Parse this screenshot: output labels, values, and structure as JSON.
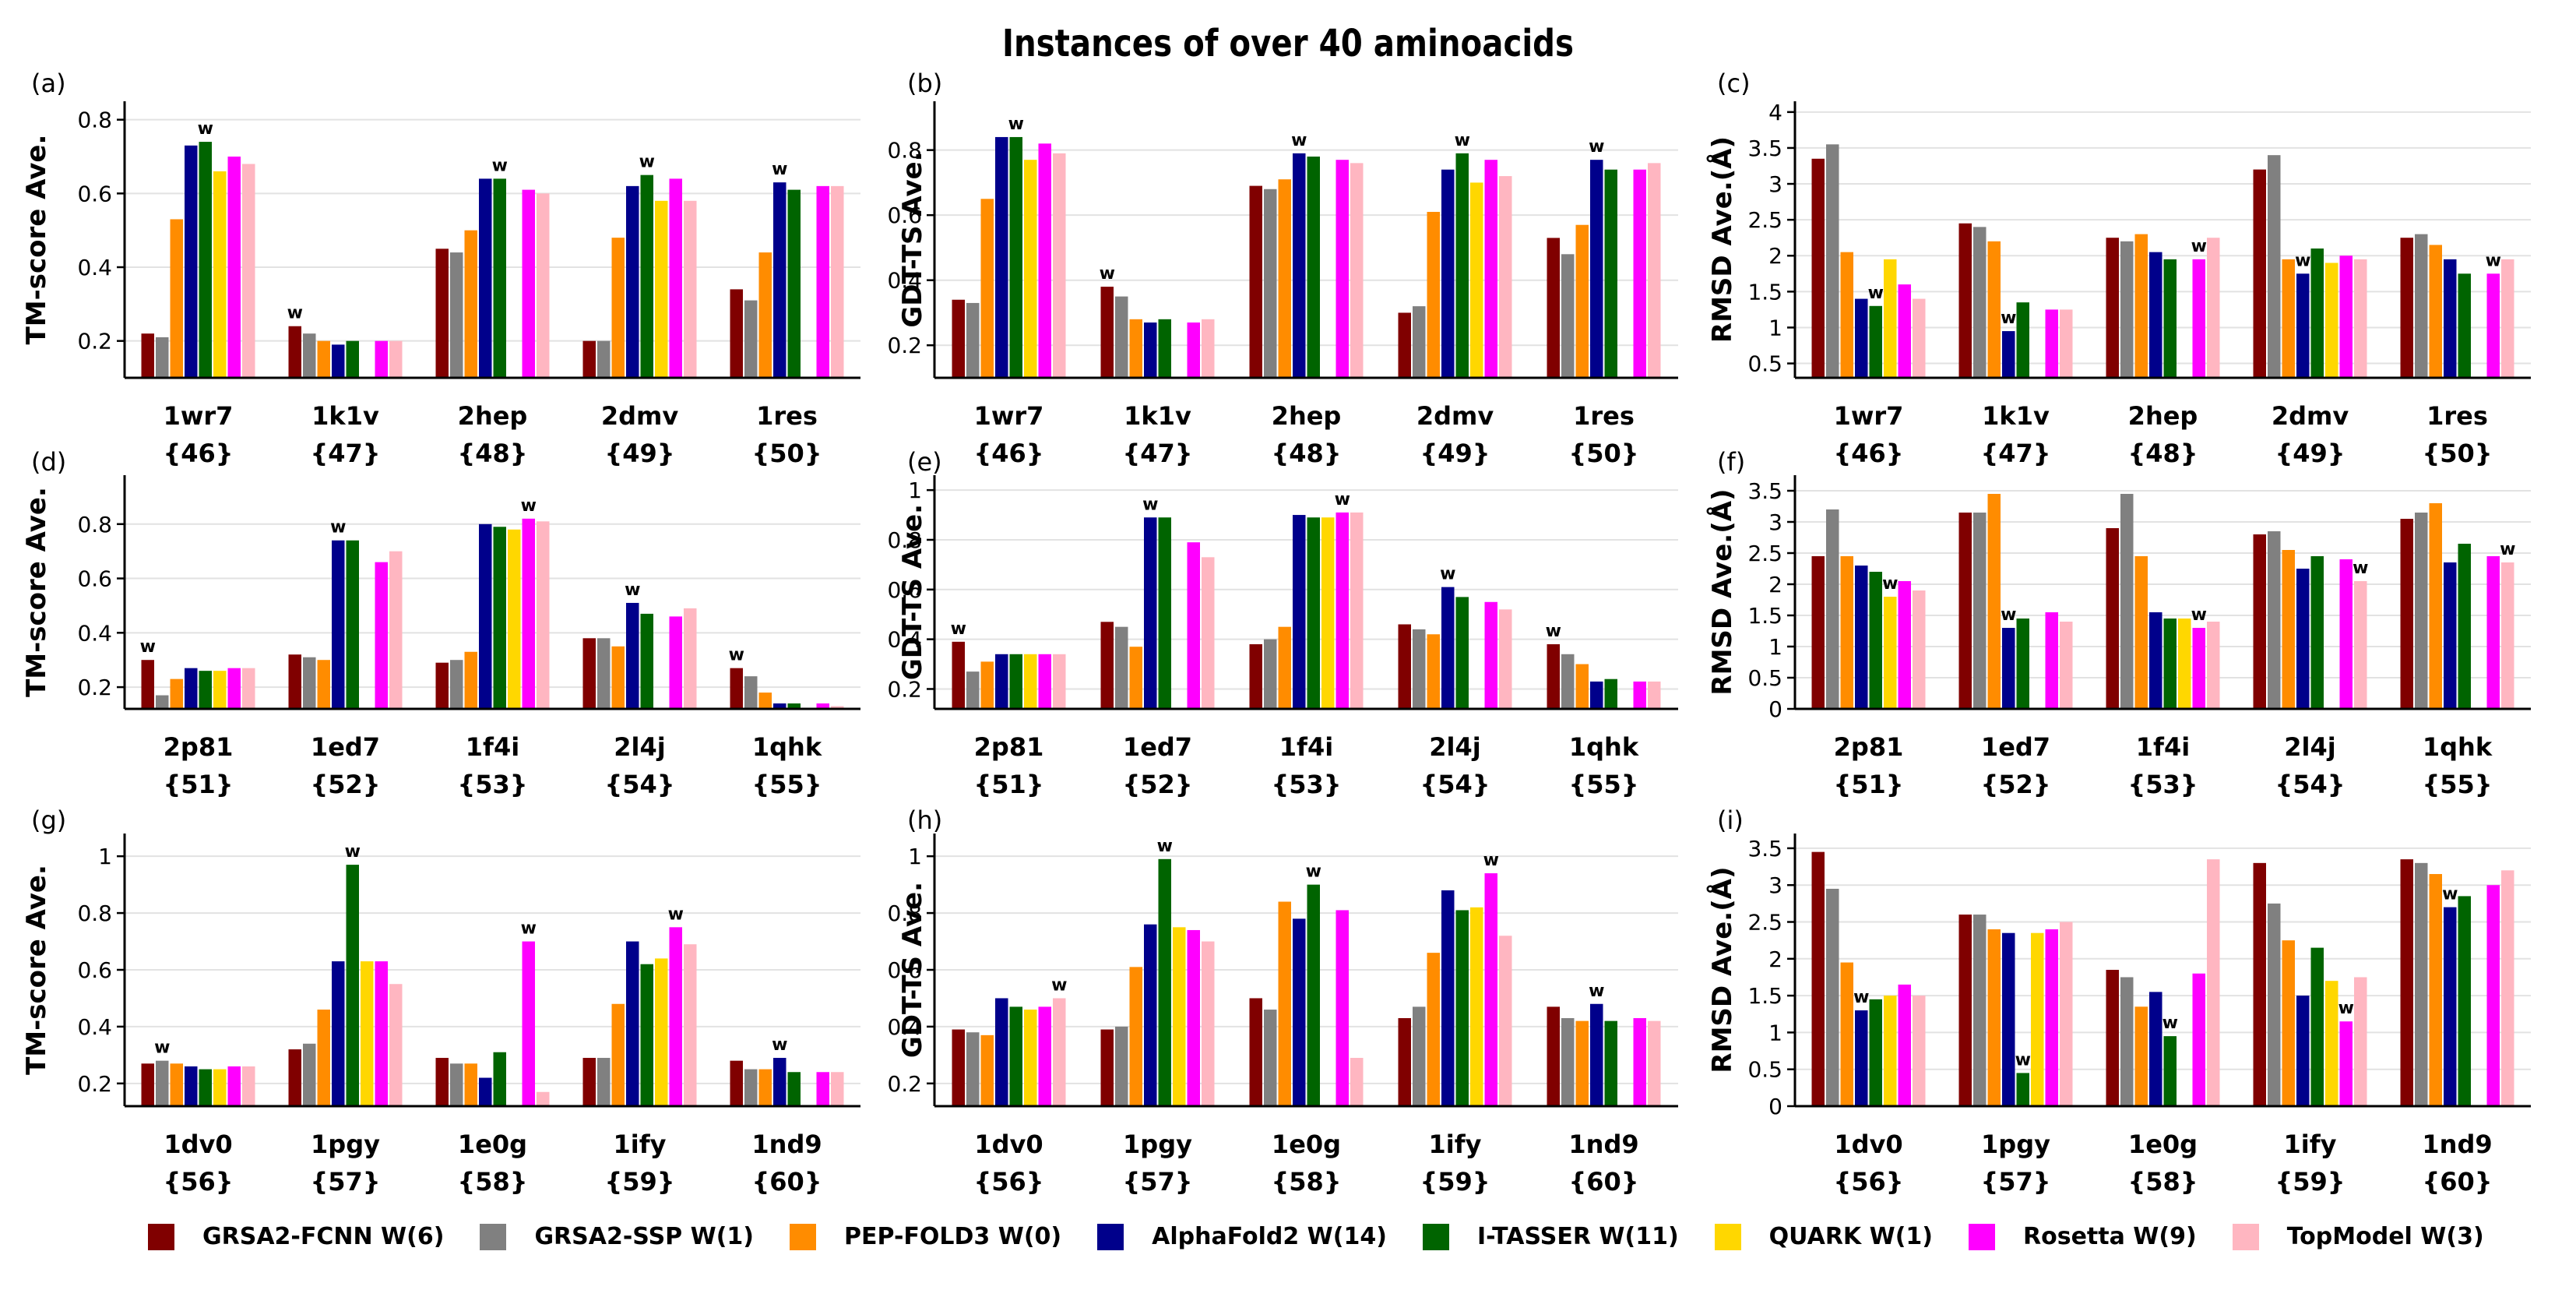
{
  "title": "Instances of over 40 aminoacids",
  "series": [
    {
      "name": "GRSA2-FCNN W(6)",
      "color": "#800000"
    },
    {
      "name": "GRSA2-SSP W(1)",
      "color": "#808080"
    },
    {
      "name": "PEP-FOLD3 W(0)",
      "color": "#ff8c00"
    },
    {
      "name": "AlphaFold2 W(14)",
      "color": "#00008b"
    },
    {
      "name": "I-TASSER W(11)",
      "color": "#006400"
    },
    {
      "name": "QUARK W(1)",
      "color": "#ffd700"
    },
    {
      "name": "Rosetta W(9)",
      "color": "#ff00ff"
    },
    {
      "name": "TopModel W(3)",
      "color": "#ffb6c1"
    }
  ],
  "winner_mark": "w",
  "chart_data": [
    {
      "panel": "(a)",
      "type": "bar",
      "ylabel": "TM-score Ave.",
      "ylim": [
        0.1,
        0.85
      ],
      "yticks": [
        0.2,
        0.4,
        0.6,
        0.8
      ],
      "ytick_labels": [
        "0.2",
        "0.4",
        "0.6",
        "0.8"
      ],
      "categories": [
        "1wr7",
        "1k1v",
        "2hep",
        "2dmv",
        "1res"
      ],
      "category_ids": [
        "{46}",
        "{47}",
        "{48}",
        "{49}",
        "{50}"
      ],
      "values": [
        [
          0.22,
          0.21,
          0.53,
          0.73,
          0.74,
          0.66,
          0.7,
          0.68
        ],
        [
          0.24,
          0.22,
          0.2,
          0.19,
          0.2,
          0.1,
          0.2,
          0.2
        ],
        [
          0.45,
          0.44,
          0.5,
          0.64,
          0.64,
          0.1,
          0.61,
          0.6
        ],
        [
          0.2,
          0.2,
          0.48,
          0.62,
          0.65,
          0.58,
          0.64,
          0.58
        ],
        [
          0.34,
          0.31,
          0.44,
          0.63,
          0.61,
          0.1,
          0.62,
          0.62
        ]
      ],
      "winners": [
        4,
        0,
        4,
        4,
        3
      ]
    },
    {
      "panel": "(b)",
      "type": "bar",
      "ylabel": "GDT-TS Ave.",
      "ylim": [
        0.1,
        0.95
      ],
      "yticks": [
        0.2,
        0.4,
        0.6,
        0.8
      ],
      "ytick_labels": [
        "0.2",
        "0.4",
        "0.6",
        "0.8"
      ],
      "categories": [
        "1wr7",
        "1k1v",
        "2hep",
        "2dmv",
        "1res"
      ],
      "category_ids": [
        "{46}",
        "{47}",
        "{48}",
        "{49}",
        "{50}"
      ],
      "values": [
        [
          0.34,
          0.33,
          0.65,
          0.84,
          0.84,
          0.77,
          0.82,
          0.79
        ],
        [
          0.38,
          0.35,
          0.28,
          0.27,
          0.28,
          0.1,
          0.27,
          0.28
        ],
        [
          0.69,
          0.68,
          0.71,
          0.79,
          0.78,
          0.1,
          0.77,
          0.76
        ],
        [
          0.3,
          0.32,
          0.61,
          0.74,
          0.79,
          0.7,
          0.77,
          0.72
        ],
        [
          0.53,
          0.48,
          0.57,
          0.77,
          0.74,
          0.1,
          0.74,
          0.76
        ]
      ],
      "winners": [
        4,
        0,
        3,
        4,
        3
      ]
    },
    {
      "panel": "(c)",
      "type": "bar",
      "ylabel": "RMSD Ave.(Å)",
      "ylim": [
        0.3,
        4.15
      ],
      "yticks": [
        0.5,
        1,
        1.5,
        2,
        2.5,
        3,
        3.5,
        4
      ],
      "ytick_labels": [
        "0.5",
        "1",
        "1.5",
        "2",
        "2.5",
        "3",
        "3.5",
        "4"
      ],
      "categories": [
        "1wr7",
        "1k1v",
        "2hep",
        "2dmv",
        "1res"
      ],
      "category_ids": [
        "{46}",
        "{47}",
        "{48}",
        "{49}",
        "{50}"
      ],
      "values": [
        [
          3.35,
          3.55,
          2.05,
          1.4,
          1.3,
          1.95,
          1.6,
          1.4
        ],
        [
          2.45,
          2.4,
          2.2,
          0.95,
          1.35,
          0.3,
          1.25,
          1.25
        ],
        [
          2.25,
          2.2,
          2.3,
          2.05,
          1.95,
          0.3,
          1.95,
          2.25
        ],
        [
          3.2,
          3.4,
          1.95,
          1.75,
          2.1,
          1.9,
          2.0,
          1.95
        ],
        [
          2.25,
          2.3,
          2.15,
          1.95,
          1.75,
          0.3,
          1.75,
          1.95
        ]
      ],
      "winners": [
        4,
        3,
        6,
        3,
        6
      ]
    },
    {
      "panel": "(d)",
      "type": "bar",
      "ylabel": "TM-score Ave.",
      "ylim": [
        0.12,
        0.98
      ],
      "yticks": [
        0.2,
        0.4,
        0.6,
        0.8
      ],
      "ytick_labels": [
        "0.2",
        "0.4",
        "0.6",
        "0.8"
      ],
      "categories": [
        "2p81",
        "1ed7",
        "1f4i",
        "2l4j",
        "1qhk"
      ],
      "category_ids": [
        "{51}",
        "{52}",
        "{53}",
        "{54}",
        "{55}"
      ],
      "values": [
        [
          0.3,
          0.17,
          0.23,
          0.27,
          0.26,
          0.26,
          0.27,
          0.27
        ],
        [
          0.32,
          0.31,
          0.3,
          0.74,
          0.74,
          0.12,
          0.66,
          0.7
        ],
        [
          0.29,
          0.3,
          0.33,
          0.8,
          0.79,
          0.78,
          0.82,
          0.81
        ],
        [
          0.38,
          0.38,
          0.35,
          0.51,
          0.47,
          0.12,
          0.46,
          0.49
        ],
        [
          0.27,
          0.24,
          0.18,
          0.14,
          0.14,
          0.12,
          0.14,
          0.13
        ]
      ],
      "winners": [
        0,
        3,
        6,
        3,
        0
      ]
    },
    {
      "panel": "(e)",
      "type": "bar",
      "ylabel": "GDT-TS Ave.",
      "ylim": [
        0.12,
        1.06
      ],
      "yticks": [
        0.2,
        0.4,
        0.6,
        0.8,
        1
      ],
      "ytick_labels": [
        "0.2",
        "0.4",
        "0.6",
        "0.8",
        "1"
      ],
      "categories": [
        "2p81",
        "1ed7",
        "1f4i",
        "2l4j",
        "1qhk"
      ],
      "category_ids": [
        "{51}",
        "{52}",
        "{53}",
        "{54}",
        "{55}"
      ],
      "values": [
        [
          0.39,
          0.27,
          0.31,
          0.34,
          0.34,
          0.34,
          0.34,
          0.34
        ],
        [
          0.47,
          0.45,
          0.37,
          0.89,
          0.89,
          0.12,
          0.79,
          0.73
        ],
        [
          0.38,
          0.4,
          0.45,
          0.9,
          0.89,
          0.89,
          0.91,
          0.91
        ],
        [
          0.46,
          0.44,
          0.42,
          0.61,
          0.57,
          0.12,
          0.55,
          0.52
        ],
        [
          0.38,
          0.34,
          0.3,
          0.23,
          0.24,
          0.12,
          0.23,
          0.23
        ]
      ],
      "winners": [
        0,
        3,
        6,
        3,
        0
      ]
    },
    {
      "panel": "(f)",
      "type": "bar",
      "ylabel": "RMSD Ave.(Å)",
      "ylim": [
        0,
        3.75
      ],
      "yticks": [
        0,
        0.5,
        1,
        1.5,
        2,
        2.5,
        3,
        3.5
      ],
      "ytick_labels": [
        "0",
        "0.5",
        "1",
        "1.5",
        "2",
        "2.5",
        "3",
        "3.5"
      ],
      "categories": [
        "2p81",
        "1ed7",
        "1f4i",
        "2l4j",
        "1qhk"
      ],
      "category_ids": [
        "{51}",
        "{52}",
        "{53}",
        "{54}",
        "{55}"
      ],
      "values": [
        [
          2.45,
          3.2,
          2.45,
          2.3,
          2.2,
          1.8,
          2.05,
          1.9
        ],
        [
          3.15,
          3.15,
          3.45,
          1.3,
          1.45,
          0,
          1.55,
          1.4
        ],
        [
          2.9,
          3.45,
          2.45,
          1.55,
          1.45,
          1.45,
          1.3,
          1.4
        ],
        [
          2.8,
          2.85,
          2.55,
          2.25,
          2.45,
          0,
          2.4,
          2.05
        ],
        [
          3.05,
          3.15,
          3.3,
          2.35,
          2.65,
          0,
          2.45,
          2.35
        ]
      ],
      "winners": [
        5,
        3,
        6,
        7,
        7
      ]
    },
    {
      "panel": "(g)",
      "type": "bar",
      "ylabel": "TM-score Ave.",
      "ylim": [
        0.12,
        1.08
      ],
      "yticks": [
        0.2,
        0.4,
        0.6,
        0.8,
        1
      ],
      "ytick_labels": [
        "0.2",
        "0.4",
        "0.6",
        "0.8",
        "1"
      ],
      "categories": [
        "1dv0",
        "1pgy",
        "1e0g",
        "1ify",
        "1nd9"
      ],
      "category_ids": [
        "{56}",
        "{57}",
        "{58}",
        "{59}",
        "{60}"
      ],
      "values": [
        [
          0.27,
          0.28,
          0.27,
          0.26,
          0.25,
          0.25,
          0.26,
          0.26
        ],
        [
          0.32,
          0.34,
          0.46,
          0.63,
          0.97,
          0.63,
          0.63,
          0.55
        ],
        [
          0.29,
          0.27,
          0.27,
          0.22,
          0.31,
          0.12,
          0.7,
          0.17
        ],
        [
          0.29,
          0.29,
          0.48,
          0.7,
          0.62,
          0.64,
          0.75,
          0.69
        ],
        [
          0.28,
          0.25,
          0.25,
          0.29,
          0.24,
          0.12,
          0.24,
          0.24
        ]
      ],
      "winners": [
        1,
        4,
        6,
        6,
        3
      ]
    },
    {
      "panel": "(h)",
      "type": "bar",
      "ylabel": "GDT-TS Ave.",
      "ylim": [
        0.12,
        1.08
      ],
      "yticks": [
        0.2,
        0.4,
        0.6,
        0.8,
        1
      ],
      "ytick_labels": [
        "0.2",
        "0.4",
        "0.6",
        "0.8",
        "1"
      ],
      "categories": [
        "1dv0",
        "1pgy",
        "1e0g",
        "1ify",
        "1nd9"
      ],
      "category_ids": [
        "{56}",
        "{57}",
        "{58}",
        "{59}",
        "{60}"
      ],
      "values": [
        [
          0.39,
          0.38,
          0.37,
          0.5,
          0.47,
          0.46,
          0.47,
          0.5
        ],
        [
          0.39,
          0.4,
          0.61,
          0.76,
          0.99,
          0.75,
          0.74,
          0.7
        ],
        [
          0.5,
          0.46,
          0.84,
          0.78,
          0.9,
          0.12,
          0.81,
          0.29
        ],
        [
          0.43,
          0.47,
          0.66,
          0.88,
          0.81,
          0.82,
          0.94,
          0.72
        ],
        [
          0.47,
          0.43,
          0.42,
          0.48,
          0.42,
          0.12,
          0.43,
          0.42
        ]
      ],
      "winners": [
        7,
        4,
        4,
        6,
        3
      ]
    },
    {
      "panel": "(i)",
      "type": "bar",
      "ylabel": "RMSD Ave.(Å)",
      "ylim": [
        0,
        3.7
      ],
      "yticks": [
        0,
        0.5,
        1,
        1.5,
        2,
        2.5,
        3,
        3.5
      ],
      "ytick_labels": [
        "0",
        "0.5",
        "1",
        "1.5",
        "2",
        "2.5",
        "3",
        "3.5"
      ],
      "categories": [
        "1dv0",
        "1pgy",
        "1e0g",
        "1ify",
        "1nd9"
      ],
      "category_ids": [
        "{56}",
        "{57}",
        "{58}",
        "{59}",
        "{60}"
      ],
      "values": [
        [
          3.45,
          2.95,
          1.95,
          1.3,
          1.45,
          1.5,
          1.65,
          1.5
        ],
        [
          2.6,
          2.6,
          2.4,
          2.35,
          0.45,
          2.35,
          2.4,
          2.5
        ],
        [
          1.85,
          1.75,
          1.35,
          1.55,
          0.95,
          0,
          1.8,
          3.35
        ],
        [
          3.3,
          2.75,
          2.25,
          1.5,
          2.15,
          1.7,
          1.15,
          1.75
        ],
        [
          3.35,
          3.3,
          3.15,
          2.7,
          2.85,
          0,
          3.0,
          3.2
        ]
      ],
      "winners": [
        3,
        4,
        4,
        6,
        3
      ]
    }
  ]
}
